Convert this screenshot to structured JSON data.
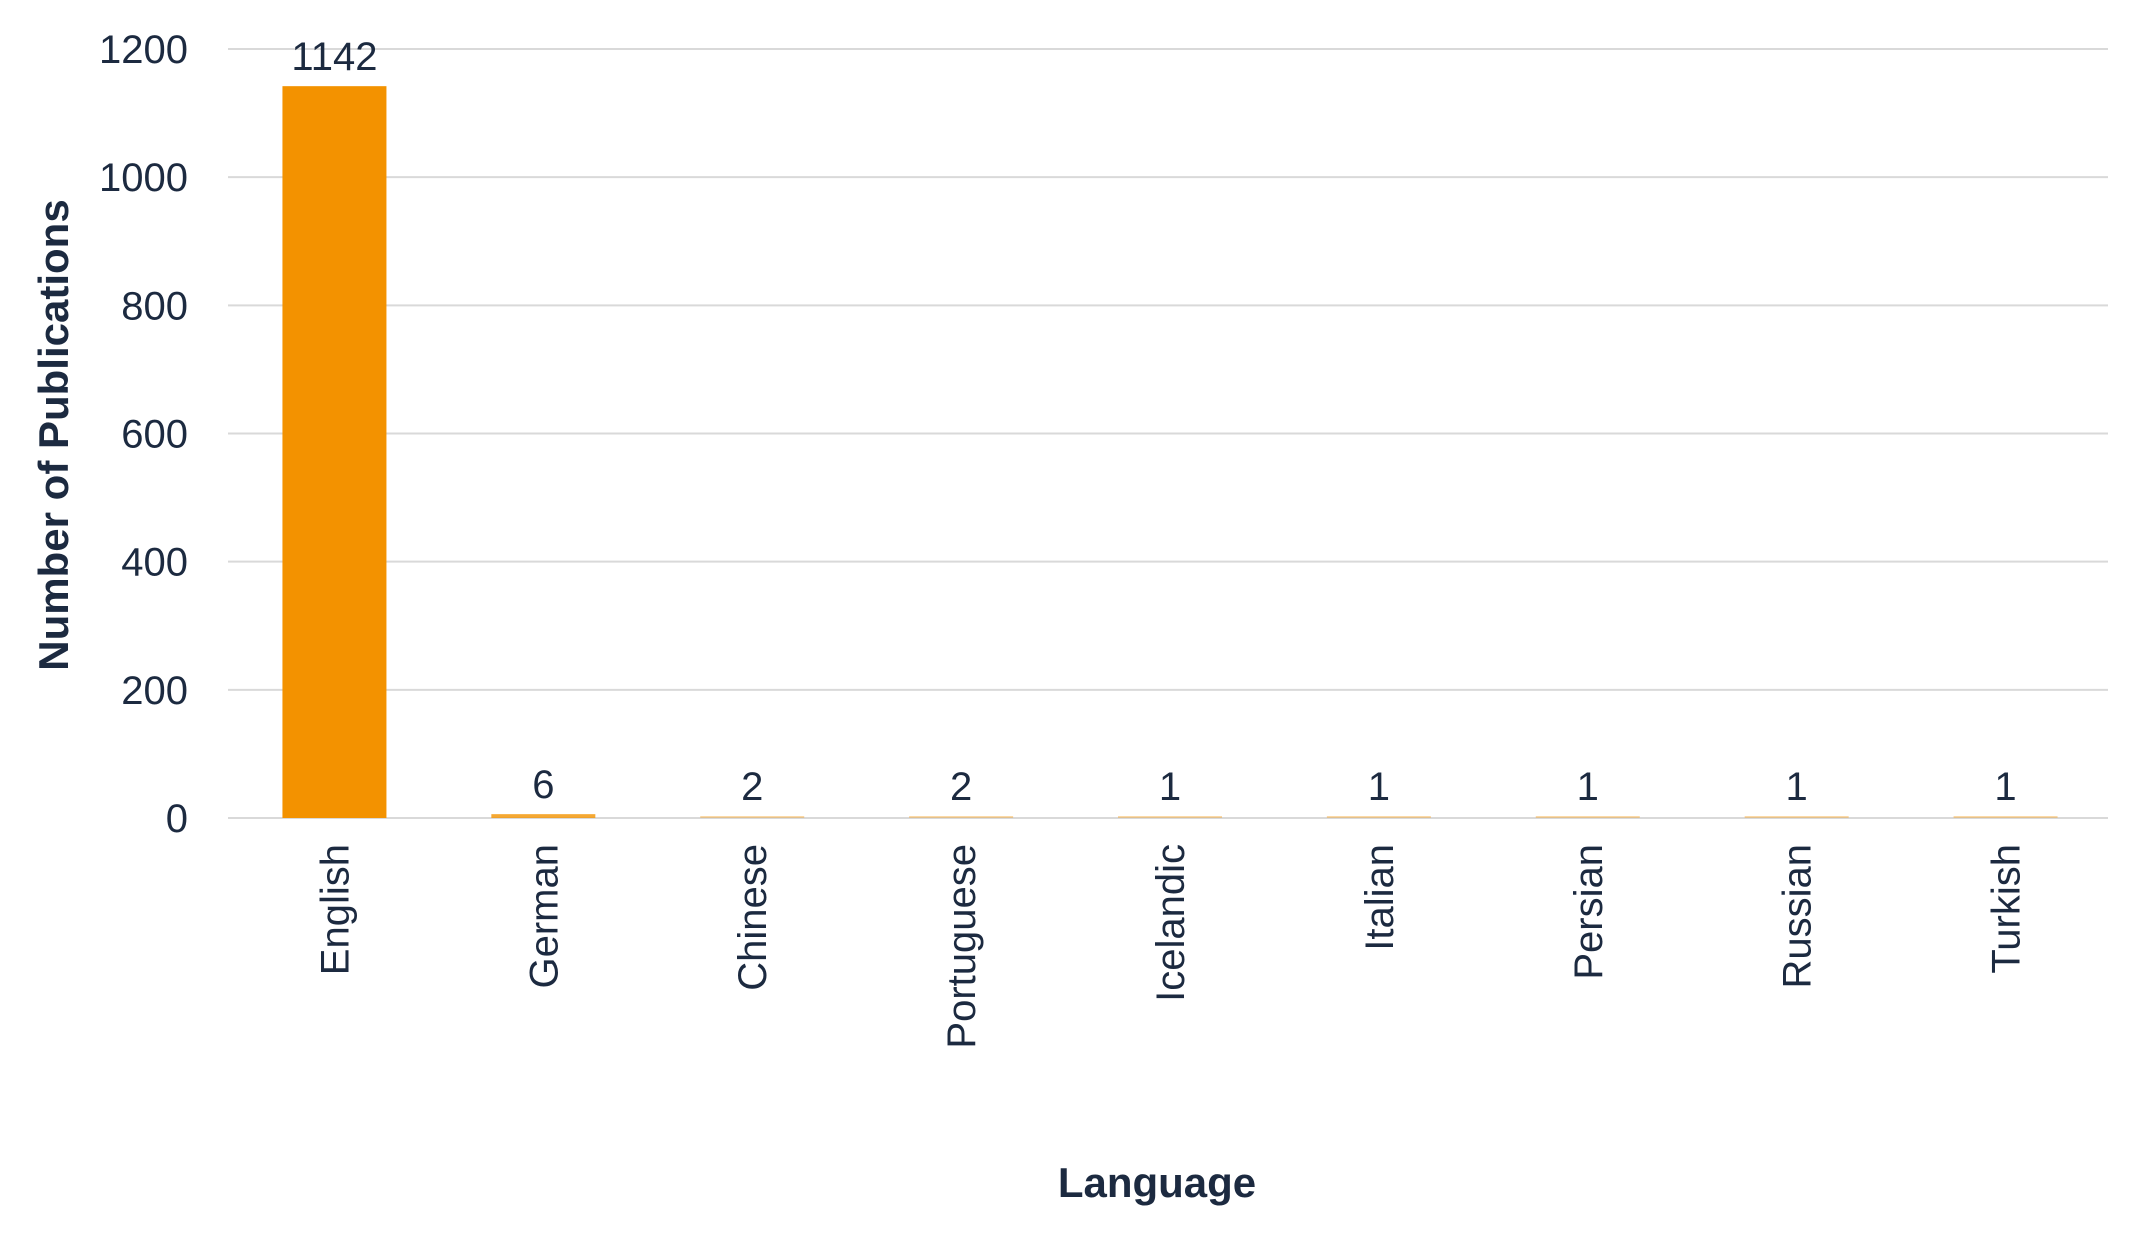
{
  "chart_data": {
    "type": "bar",
    "title": "",
    "xlabel": "Language",
    "ylabel": "Number of Publications",
    "categories": [
      "English",
      "German",
      "Chinese",
      "Portuguese",
      "Icelandic",
      "Italian",
      "Persian",
      "Russian",
      "Turkish"
    ],
    "values": [
      1142,
      6,
      2,
      2,
      1,
      1,
      1,
      1,
      1
    ],
    "data_labels": [
      "1142",
      "6",
      "2",
      "2",
      "1",
      "1",
      "1",
      "1",
      "1"
    ],
    "yticks": [
      0,
      200,
      400,
      600,
      800,
      1000,
      1200
    ],
    "ytick_labels": [
      "0",
      "200",
      "400",
      "600",
      "800",
      "1000",
      "1200"
    ],
    "ylim": [
      0,
      1200
    ],
    "grid": true,
    "legend": "none",
    "colors": {
      "bar": "#f39200",
      "text": "#1c2a40",
      "grid": "#d9d9d9"
    }
  }
}
